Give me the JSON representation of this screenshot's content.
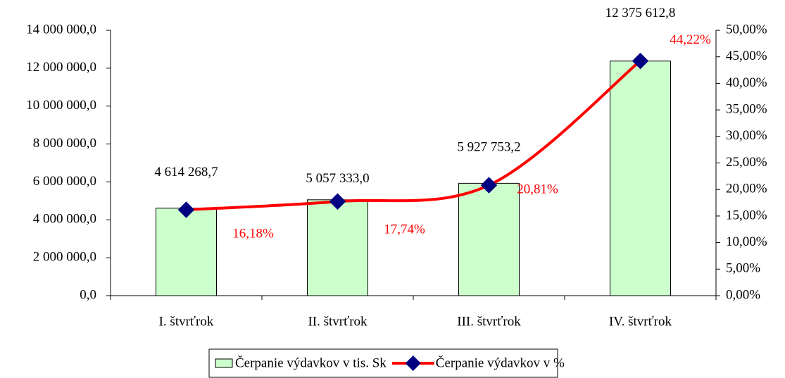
{
  "chart_data": {
    "type": "bar-line",
    "categories": [
      "I. štvrťrok",
      "II. štvrťrok",
      "III. štvrťrok",
      "IV. štvrťrok"
    ],
    "series": [
      {
        "name": "Čerpanie výdavkov v tis. Sk",
        "type": "bar",
        "color": "#ccffcc",
        "values": [
          4614268.7,
          5057333.0,
          5927753.2,
          12375612.8
        ],
        "value_labels": [
          "4 614 268,7",
          "5 057 333,0",
          "5 927 753,2",
          "12 375 612,8"
        ]
      },
      {
        "name": "Čerpanie výdavkov v %",
        "type": "line",
        "axis": "y2",
        "color": "#ff0000",
        "marker_color": "#000080",
        "values": [
          16.18,
          17.74,
          20.81,
          44.22
        ],
        "value_labels": [
          "16,18%",
          "17,74%",
          "20,81%",
          "44,22%"
        ]
      }
    ],
    "ylim": [
      0,
      14000000
    ],
    "yticks": [
      {
        "value": 0,
        "label": "0,0"
      },
      {
        "value": 2000000,
        "label": "2 000 000,0"
      },
      {
        "value": 4000000,
        "label": "4 000 000,0"
      },
      {
        "value": 6000000,
        "label": "6 000 000,0"
      },
      {
        "value": 8000000,
        "label": "8 000 000,0"
      },
      {
        "value": 10000000,
        "label": "10 000 000,0"
      },
      {
        "value": 12000000,
        "label": "12 000 000,0"
      },
      {
        "value": 14000000,
        "label": "14 000 000,0"
      }
    ],
    "y2lim": [
      0,
      50
    ],
    "y2ticks": [
      {
        "value": 0,
        "label": "0,00%"
      },
      {
        "value": 5,
        "label": "5,00%"
      },
      {
        "value": 10,
        "label": "10,00%"
      },
      {
        "value": 15,
        "label": "15,00%"
      },
      {
        "value": 20,
        "label": "20,00%"
      },
      {
        "value": 25,
        "label": "25,00%"
      },
      {
        "value": 30,
        "label": "30,00%"
      },
      {
        "value": 35,
        "label": "35,00%"
      },
      {
        "value": 40,
        "label": "40,00%"
      },
      {
        "value": 45,
        "label": "45,00%"
      },
      {
        "value": 50,
        "label": "50,00%"
      }
    ],
    "legend": "bottom"
  }
}
